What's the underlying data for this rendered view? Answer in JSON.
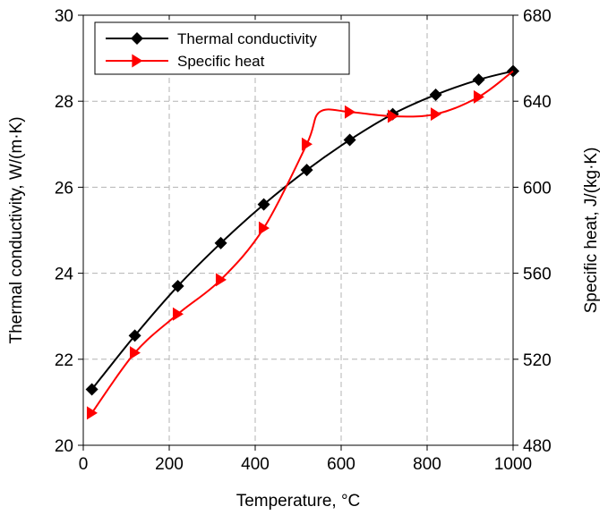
{
  "chart_data": {
    "type": "line",
    "xlabel": "Temperature, °C",
    "ylabel_left": "Thermal conductivity, W/(m·K)",
    "ylabel_right": "Specific heat, J/(kg·K)",
    "xlim": [
      0,
      1000
    ],
    "ylim_left": [
      20,
      30
    ],
    "ylim_right": [
      480,
      680
    ],
    "x_ticks": [
      0,
      200,
      400,
      600,
      800,
      1000
    ],
    "y_left_ticks": [
      20,
      22,
      24,
      26,
      28,
      30
    ],
    "y_right_ticks": [
      480,
      520,
      560,
      600,
      640,
      680
    ],
    "grid": true,
    "legend_position": "top-left",
    "series": [
      {
        "name": "Thermal conductivity",
        "axis": "left",
        "color": "#000000",
        "marker": "diamond",
        "x": [
          20,
          120,
          220,
          320,
          420,
          520,
          620,
          720,
          820,
          920,
          1000
        ],
        "y": [
          21.3,
          22.55,
          23.7,
          24.7,
          25.6,
          26.4,
          27.1,
          27.7,
          28.15,
          28.5,
          28.7
        ]
      },
      {
        "name": "Specific heat",
        "axis": "right",
        "color": "#ff0000",
        "marker": "triangle-right",
        "x": [
          20,
          120,
          220,
          320,
          420,
          520,
          550,
          620,
          720,
          820,
          920,
          1000
        ],
        "y": [
          495,
          523,
          541,
          557,
          581,
          620,
          635,
          635,
          633,
          634,
          642,
          654
        ],
        "marker_mask": [
          true,
          true,
          true,
          true,
          true,
          true,
          false,
          true,
          true,
          true,
          true,
          false
        ]
      }
    ]
  }
}
